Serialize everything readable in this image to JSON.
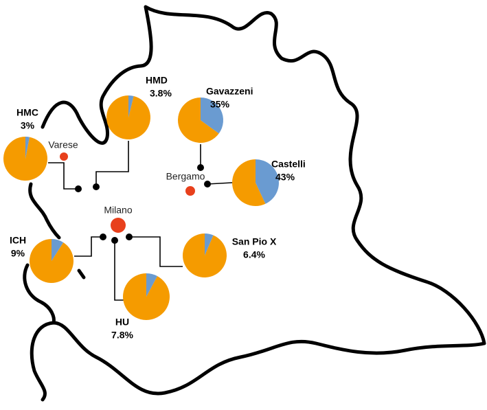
{
  "pies": {
    "names": [
      "HMC",
      "HMD",
      "Gavazzeni",
      "Castelli",
      "ICH",
      "San Pio X",
      "HU"
    ],
    "values": [
      3,
      3.8,
      35,
      43,
      9,
      6.4,
      7.8
    ],
    "value_labels": [
      "3%",
      "3.8%",
      "35%",
      "43%",
      "9%",
      "6.4%",
      "7.8%"
    ],
    "colors": {
      "share": "#6a9bd1",
      "rest": "#f59b00"
    }
  },
  "cities": [
    "Varese",
    "Bergamo",
    "Milano"
  ]
}
